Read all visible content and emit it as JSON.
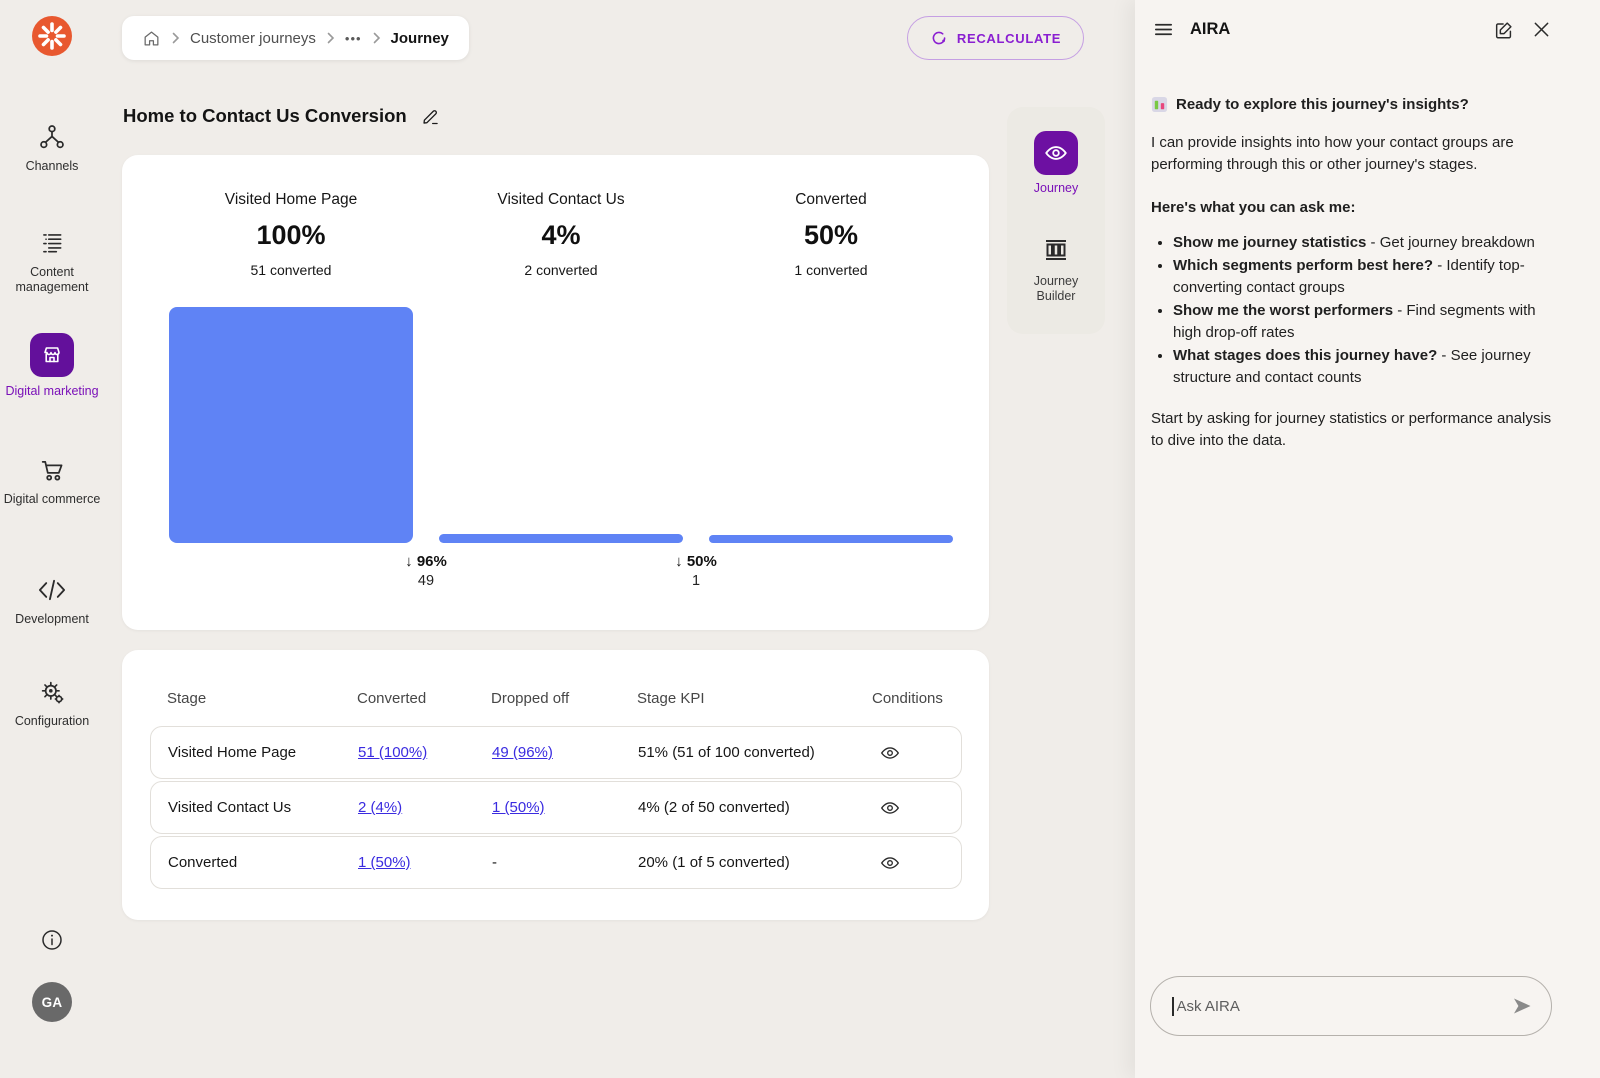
{
  "colors": {
    "logo_orange": "#e8582f",
    "accent_purple": "#8a1fd1",
    "deep_purple": "#63109b",
    "bar_blue": "#5f83f5",
    "link_blue": "#3a2be0"
  },
  "sidebar": {
    "items": [
      {
        "label": "Channels"
      },
      {
        "label": "Content management"
      },
      {
        "label": "Digital marketing",
        "active": true
      },
      {
        "label": "Digital commerce"
      },
      {
        "label": "Development"
      },
      {
        "label": "Configuration"
      }
    ],
    "avatar_initials": "GA"
  },
  "breadcrumb": {
    "items": [
      "Customer journeys",
      "•••",
      "Journey"
    ]
  },
  "topbar": {
    "recalculate_label": "RECALCULATE"
  },
  "page": {
    "title": "Home to Contact Us Conversion"
  },
  "chart_data": {
    "type": "funnel",
    "title": "Home to Contact Us Conversion",
    "stages": [
      {
        "label": "Visited Home Page",
        "percent": "100%",
        "converted": "51 converted",
        "count": 51
      },
      {
        "label": "Visited Contact Us",
        "percent": "4%",
        "converted": "2 converted",
        "count": 2
      },
      {
        "label": "Converted",
        "percent": "50%",
        "converted": "1 converted",
        "count": 1
      }
    ],
    "drops": [
      {
        "arrow": "↓",
        "percent": "96%",
        "count": "49"
      },
      {
        "arrow": "↓",
        "percent": "50%",
        "count": "1"
      }
    ],
    "bar_color": "#5f83f5"
  },
  "table": {
    "headers": [
      "Stage",
      "Converted",
      "Dropped off",
      "Stage KPI",
      "Conditions"
    ],
    "rows": [
      {
        "stage": "Visited Home Page",
        "converted": "51 (100%)",
        "dropped": "49 (96%)",
        "kpi": "51% (51 of 100 converted)"
      },
      {
        "stage": "Visited Contact Us",
        "converted": "2 (4%)",
        "dropped": "1 (50%)",
        "kpi": "4% (2 of 50 converted)"
      },
      {
        "stage": "Converted",
        "converted": "1 (50%)",
        "dropped": "-",
        "kpi": "20% (1 of 5 converted)"
      }
    ]
  },
  "side_toolbar": {
    "items": [
      {
        "label": "Journey",
        "active": true
      },
      {
        "label": "Journey Builder"
      }
    ]
  },
  "aira": {
    "title": "AIRA",
    "intro_heading": "Ready to explore this journey's insights?",
    "intro_body": "I can provide insights into how your contact groups are performing through this or other journey's stages.",
    "ask_heading": "Here's what you can ask me:",
    "suggestions": [
      {
        "bold": "Show me journey statistics",
        "rest": " - Get journey breakdown"
      },
      {
        "bold": "Which segments perform best here?",
        "rest": " - Identify top-converting contact groups"
      },
      {
        "bold": "Show me the worst performers",
        "rest": " - Find segments with high drop-off rates"
      },
      {
        "bold": "What stages does this journey have?",
        "rest": " - See journey structure and contact counts"
      }
    ],
    "outro": "Start by asking for journey statistics or performance analysis to dive into the data.",
    "input_placeholder": "Ask AIRA"
  }
}
